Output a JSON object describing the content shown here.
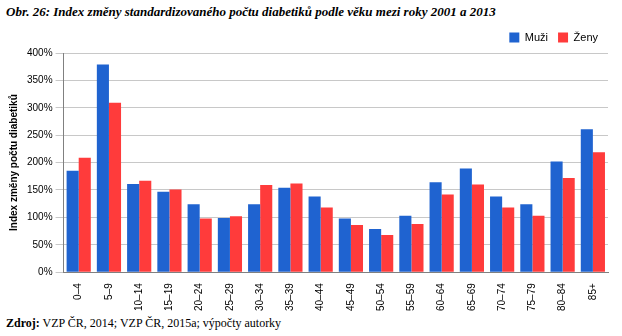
{
  "chart_data": {
    "type": "bar",
    "title": "Obr. 26: Index změny standardizovaného počtu diabetiků podle věku mezi roky 2001 a 2013",
    "y_label": "Index změny počtu diabetiků",
    "annotation": "Zdroj: VZP ČR, 2014; VZP ČR, 2015a; výpočty autorky",
    "categories": [
      "0–4",
      "5–9",
      "10–14",
      "15–19",
      "20–24",
      "25–29",
      "30–34",
      "35–39",
      "40–44",
      "45–49",
      "50–54",
      "55–59",
      "60–64",
      "65–69",
      "70–74",
      "75–79",
      "80–84",
      "85+"
    ],
    "series": [
      {
        "name": "Muži",
        "color": "#1f63d0",
        "values": [
          185,
          379,
          161,
          147,
          124,
          99,
          124,
          154,
          138,
          98,
          79,
          103,
          164,
          189,
          138,
          124,
          202,
          261
        ]
      },
      {
        "name": "Ženy",
        "color": "#ff3b3b",
        "values": [
          209,
          309,
          167,
          151,
          98,
          102,
          159,
          162,
          118,
          86,
          68,
          88,
          142,
          160,
          118,
          103,
          172,
          219
        ]
      }
    ],
    "ylim": [
      0,
      400
    ],
    "yticks": [
      {
        "value": 0,
        "label": "0%"
      },
      {
        "value": 50,
        "label": "50%"
      },
      {
        "value": 100,
        "label": "100%"
      },
      {
        "value": 150,
        "label": "150%"
      },
      {
        "value": 200,
        "label": "200%"
      },
      {
        "value": 250,
        "label": "250%"
      },
      {
        "value": 300,
        "label": "300%"
      },
      {
        "value": 350,
        "label": "350%"
      },
      {
        "value": 400,
        "label": "400%"
      }
    ],
    "grid": true,
    "legend": "top-right"
  }
}
